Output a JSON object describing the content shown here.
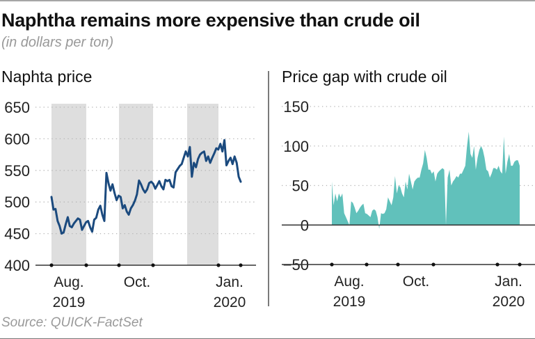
{
  "title": "Naphtha remains more expensive than crude oil",
  "subtitle": "(in dollars per ton)",
  "source": "Source: QUICK-FactSet",
  "colors": {
    "line": "#1b4a7e",
    "area": "#61c1bb",
    "band": "#dedede",
    "axis": "#333333",
    "grid": "#b5b5b5"
  },
  "chart_data": [
    {
      "type": "line",
      "title": "Naphta price",
      "ylabel": "",
      "xlabel": "",
      "ylim": [
        400,
        650
      ],
      "yticks": [
        400,
        450,
        500,
        550,
        600,
        650
      ],
      "ytick_labels": [
        "400",
        "450",
        "500",
        "550",
        "600",
        "650"
      ],
      "grid": true,
      "x_range_months": [
        "2019-07 (late)",
        "2020-01 (early)"
      ],
      "x_tick_labels": [
        {
          "line1": "Aug.",
          "line2": "2019",
          "month_index": 0.5
        },
        {
          "line1": "Oct.",
          "line2": "",
          "month_index": 2.5
        },
        {
          "line1": "Jan.",
          "line2": "2020",
          "month_index": 5.5
        }
      ],
      "shaded_months": [
        "Aug. 2019",
        "Oct. 2019",
        "Dec. 2019"
      ],
      "series": [
        {
          "name": "Naphtha price",
          "values": [
            508,
            488,
            489,
            470,
            462,
            450,
            452,
            465,
            476,
            462,
            460,
            466,
            470,
            474,
            472,
            456,
            462,
            468,
            470,
            460,
            453,
            472,
            475,
            488,
            494,
            480,
            470,
            546,
            530,
            518,
            528,
            514,
            503,
            510,
            508,
            490,
            495,
            485,
            480,
            490,
            495,
            502,
            512,
            534,
            528,
            520,
            515,
            520,
            530,
            532,
            529,
            521,
            527,
            533,
            525,
            520,
            535,
            533,
            535,
            525,
            523,
            547,
            552,
            557,
            560,
            570,
            580,
            572,
            587,
            540,
            562,
            555,
            568,
            575,
            578,
            580,
            565,
            572,
            562,
            570,
            577,
            585,
            583,
            592,
            580,
            598,
            558,
            565,
            570,
            560,
            572,
            562,
            540,
            532
          ]
        }
      ]
    },
    {
      "type": "area",
      "title": "Price gap with crude oil",
      "ylabel": "",
      "xlabel": "",
      "ylim": [
        -50,
        150
      ],
      "yticks": [
        -50,
        0,
        50,
        100,
        150
      ],
      "ytick_labels": [
        "−50",
        "0",
        "50",
        "100",
        "150"
      ],
      "grid": true,
      "x_tick_labels": [
        {
          "line1": "Aug.",
          "line2": "2019",
          "month_index": 0.5
        },
        {
          "line1": "Oct.",
          "line2": "",
          "month_index": 2.5
        },
        {
          "line1": "Jan.",
          "line2": "2020",
          "month_index": 5.5
        }
      ],
      "series": [
        {
          "name": "Naphtha minus crude oil",
          "values": [
            55,
            25,
            40,
            30,
            40,
            35,
            40,
            15,
            10,
            5,
            0,
            30,
            28,
            22,
            15,
            18,
            22,
            25,
            27,
            15,
            14,
            12,
            10,
            18,
            20,
            18,
            10,
            -5,
            15,
            14,
            15,
            20,
            35,
            30,
            25,
            35,
            62,
            40,
            50,
            48,
            40,
            35,
            55,
            45,
            65,
            55,
            45,
            55,
            58,
            60,
            60,
            70,
            78,
            95,
            85,
            70,
            70,
            65,
            68,
            55,
            65,
            68,
            70,
            72,
            70,
            0,
            60,
            70,
            50,
            55,
            58,
            62,
            60,
            65,
            65,
            70,
            75,
            100,
            118,
            90,
            85,
            100,
            70,
            85,
            95,
            100,
            95,
            85,
            70,
            68,
            60,
            65,
            72,
            72,
            70,
            75,
            68,
            65,
            112,
            65,
            80,
            90,
            75,
            75,
            80,
            82,
            82,
            75
          ]
        }
      ]
    }
  ]
}
